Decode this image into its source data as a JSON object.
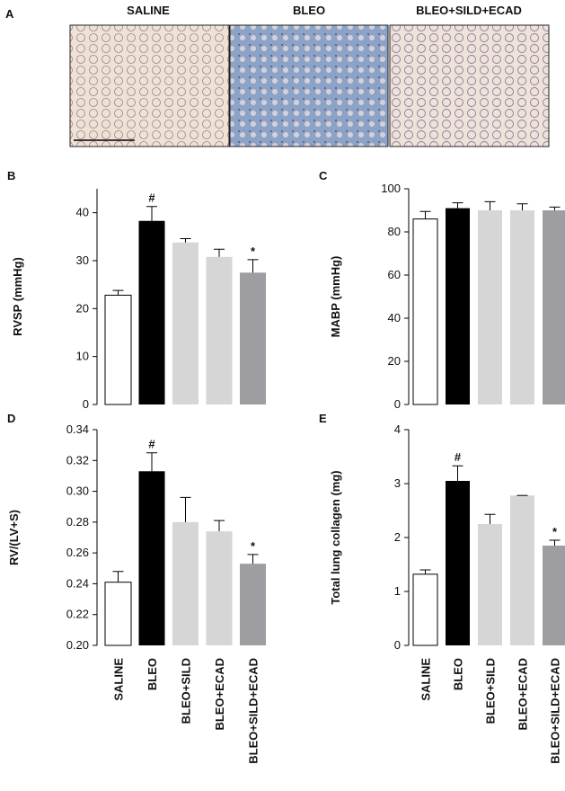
{
  "panel_a": {
    "label": "A",
    "captions": [
      "SALINE",
      "BLEO",
      "BLEO+SILD+ECAD"
    ]
  },
  "chart_data": [
    {
      "type": "bar",
      "panel_label": "B",
      "y_label": "RVSP (mmHg)",
      "categories": [
        null,
        null,
        null,
        null,
        null
      ],
      "values": [
        22.8,
        38.3,
        33.8,
        30.8,
        27.5
      ],
      "errors": [
        1.0,
        3.0,
        0.8,
        1.6,
        2.7
      ],
      "colors": [
        "#ffffff",
        "#000000",
        "#d6d6d6",
        "#d6d6d6",
        "#9d9da2"
      ],
      "ylim": [
        0,
        45
      ],
      "yticks": [
        0,
        10,
        20,
        30,
        40
      ],
      "annotations": [
        {
          "text": "#",
          "category": 1
        },
        {
          "text": "*",
          "category": 4
        }
      ]
    },
    {
      "type": "bar",
      "panel_label": "C",
      "y_label": "MABP (mmHg)",
      "categories": [
        null,
        null,
        null,
        null,
        null
      ],
      "values": [
        86,
        91,
        90,
        90,
        90
      ],
      "errors": [
        3.5,
        2.5,
        4,
        3,
        1.5
      ],
      "colors": [
        "#ffffff",
        "#000000",
        "#d6d6d6",
        "#d6d6d6",
        "#9d9da2"
      ],
      "ylim": [
        0,
        100
      ],
      "yticks": [
        0,
        20,
        40,
        60,
        80,
        100
      ],
      "annotations": []
    },
    {
      "type": "bar",
      "panel_label": "D",
      "y_label": "RV/(LV+S)",
      "categories": [
        "SALINE",
        "BLEO",
        "BLEO+SILD",
        "BLEO+ECAD",
        "BLEO+SILD+ECAD"
      ],
      "values": [
        0.241,
        0.313,
        0.28,
        0.274,
        0.253
      ],
      "errors": [
        0.007,
        0.012,
        0.016,
        0.007,
        0.006
      ],
      "colors": [
        "#ffffff",
        "#000000",
        "#d6d6d6",
        "#d6d6d6",
        "#9d9da2"
      ],
      "ylim": [
        0.2,
        0.34
      ],
      "yticks": [
        {
          "value": 0.2,
          "label": "0.20"
        },
        {
          "value": 0.22,
          "label": "0.22"
        },
        {
          "value": 0.24,
          "label": "0.24"
        },
        {
          "value": 0.26,
          "label": "0.26"
        },
        {
          "value": 0.28,
          "label": "0.28"
        },
        {
          "value": 0.3,
          "label": "0.30"
        },
        {
          "value": 0.32,
          "label": "0.32"
        },
        {
          "value": 0.34,
          "label": "0.34"
        }
      ],
      "annotations": [
        {
          "text": "#",
          "category": 1
        },
        {
          "text": "*",
          "category": 4
        }
      ]
    },
    {
      "type": "bar",
      "panel_label": "E",
      "y_label": "Total lung collagen (mg)",
      "categories": [
        "SALINE",
        "BLEO",
        "BLEO+SILD",
        "BLEO+ECAD",
        "BLEO+SILD+ECAD"
      ],
      "values": [
        1.32,
        3.05,
        2.25,
        2.78,
        1.85
      ],
      "errors": [
        0.08,
        0.28,
        0.18,
        0,
        0.1
      ],
      "colors": [
        "#ffffff",
        "#000000",
        "#d6d6d6",
        "#d6d6d6",
        "#9d9da2"
      ],
      "ylim": [
        0,
        4
      ],
      "yticks": [
        0,
        1,
        2,
        3,
        4
      ],
      "annotations": [
        {
          "text": "#",
          "category": 1
        },
        {
          "text": "*",
          "category": 4
        }
      ]
    }
  ]
}
